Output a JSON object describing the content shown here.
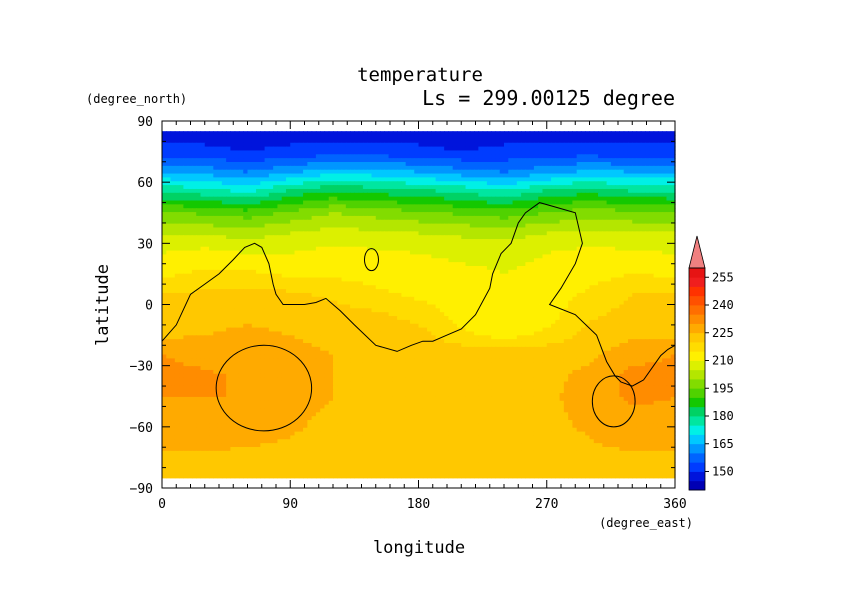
{
  "chart_data": {
    "type": "heatmap",
    "title": "temperature",
    "subtitle": "Ls = 299.00125 degree",
    "xlabel": "longitude",
    "ylabel": "latitude",
    "x_units": "(degree_east)",
    "y_units": "(degree_north)",
    "xlim": [
      0,
      360
    ],
    "ylim": [
      -90,
      90
    ],
    "x_ticks": [
      "0",
      "90",
      "180",
      "270",
      "360"
    ],
    "y_ticks": [
      "90",
      "60",
      "30",
      "0",
      "−30",
      "−60",
      "−90"
    ],
    "grid": false,
    "colorbar": {
      "placement": "right",
      "labels": [
        "255",
        "240",
        "225",
        "210",
        "195",
        "180",
        "165",
        "150"
      ],
      "levels": [
        140,
        145,
        150,
        155,
        160,
        165,
        170,
        175,
        180,
        185,
        190,
        195,
        200,
        205,
        210,
        215,
        220,
        225,
        230,
        235,
        240,
        245,
        250,
        255,
        260
      ],
      "colors": [
        "#0000b4",
        "#0014dc",
        "#003cff",
        "#0064ff",
        "#0096ff",
        "#00c8ff",
        "#00f0e6",
        "#00e6a0",
        "#00d264",
        "#14c800",
        "#50d200",
        "#82dc00",
        "#b4e600",
        "#dcf000",
        "#fff000",
        "#ffdc00",
        "#ffc800",
        "#ffaa00",
        "#ff8c00",
        "#ff6e00",
        "#ff5000",
        "#ff3200",
        "#f01e1e",
        "#e61414"
      ],
      "extend_color": "#f08080"
    },
    "latitudes": [
      85,
      75,
      65,
      55,
      45,
      35,
      25,
      15,
      5,
      -5,
      -15,
      -25,
      -35,
      -45,
      -55,
      -65,
      -75,
      -85
    ],
    "longitudes": [
      0,
      30,
      60,
      90,
      120,
      150,
      180,
      210,
      240,
      270,
      300,
      330,
      360
    ],
    "values": [
      [
        148,
        148,
        148,
        148,
        148,
        148,
        148,
        148,
        148,
        148,
        148,
        148,
        148
      ],
      [
        152,
        151,
        150,
        151,
        152,
        152,
        151,
        150,
        151,
        152,
        152,
        151,
        152
      ],
      [
        165,
        163,
        160,
        164,
        168,
        167,
        165,
        162,
        160,
        163,
        166,
        165,
        165
      ],
      [
        180,
        178,
        175,
        182,
        186,
        184,
        182,
        180,
        176,
        182,
        184,
        181,
        180
      ],
      [
        196,
        194,
        192,
        196,
        200,
        198,
        196,
        194,
        192,
        195,
        198,
        196,
        196
      ],
      [
        205,
        204,
        203,
        205,
        207,
        206,
        205,
        204,
        203,
        205,
        206,
        205,
        205
      ],
      [
        210,
        212,
        210,
        210,
        212,
        211,
        210,
        209,
        209,
        210,
        212,
        211,
        210
      ],
      [
        214,
        216,
        216,
        214,
        214,
        213,
        212,
        211,
        210,
        211,
        213,
        215,
        214
      ],
      [
        220,
        221,
        222,
        221,
        219,
        216,
        214,
        212,
        210,
        212,
        216,
        220,
        220
      ],
      [
        222,
        223,
        224,
        223,
        222,
        221,
        218,
        213,
        210,
        213,
        219,
        222,
        222
      ],
      [
        224,
        225,
        226,
        225,
        224,
        224,
        222,
        216,
        213,
        216,
        222,
        224,
        224
      ],
      [
        230,
        228,
        226,
        226,
        225,
        225,
        224,
        224,
        224,
        224,
        224,
        228,
        230
      ],
      [
        232,
        231,
        229,
        228,
        225,
        224,
        224,
        224,
        224,
        224,
        226,
        232,
        232
      ],
      [
        230,
        230,
        230,
        228,
        225,
        224,
        224,
        221,
        224,
        224,
        227,
        231,
        230
      ],
      [
        229,
        229,
        229,
        226,
        224,
        224,
        224,
        224,
        224,
        224,
        226,
        229,
        229
      ],
      [
        227,
        227,
        226,
        225,
        224,
        224,
        224,
        224,
        224,
        224,
        225,
        227,
        227
      ],
      [
        224,
        224,
        224,
        224,
        224,
        224,
        224,
        224,
        224,
        224,
        224,
        224,
        224
      ],
      [
        223,
        223,
        223,
        223,
        223,
        223,
        223,
        223,
        223,
        223,
        223,
        223,
        223
      ]
    ],
    "topography_contour_longitude": [
      0,
      10,
      20,
      30,
      40,
      50,
      58,
      65,
      70,
      75,
      78,
      80,
      85,
      90,
      100,
      108,
      115,
      125,
      135,
      150,
      165,
      175,
      183,
      190,
      200,
      210,
      220,
      230,
      232,
      238,
      245,
      250,
      255,
      265,
      275,
      290,
      295,
      290,
      280,
      272,
      290,
      305,
      312,
      318,
      322,
      330,
      338,
      345,
      350,
      355,
      360
    ],
    "topography_contour_latitude": [
      -18,
      -10,
      5,
      10,
      15,
      22,
      28,
      30,
      28,
      20,
      10,
      5,
      0,
      0,
      0,
      1,
      3,
      -3,
      -10,
      -20,
      -23,
      -20,
      -18,
      -18,
      -15,
      -12,
      -5,
      8,
      15,
      25,
      30,
      40,
      45,
      50,
      48,
      45,
      30,
      20,
      8,
      0,
      -5,
      -15,
      -28,
      -35,
      -38,
      -40,
      -37,
      -30,
      -25,
      -22,
      -20
    ]
  }
}
